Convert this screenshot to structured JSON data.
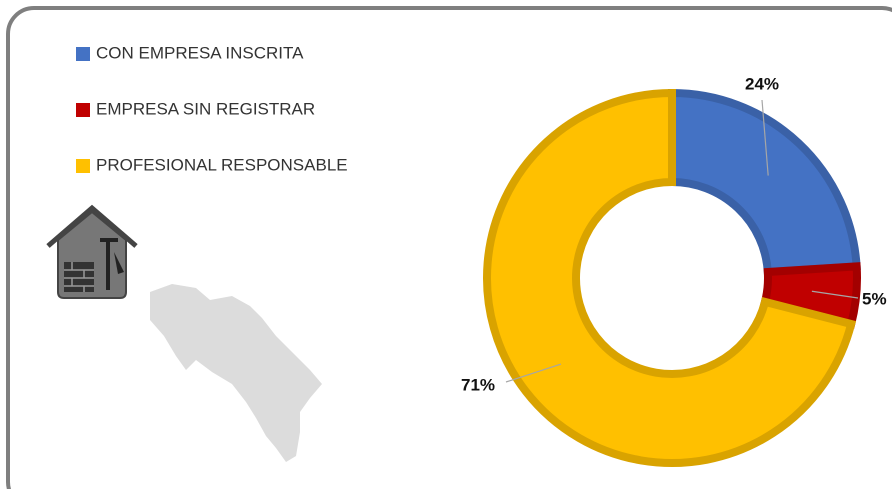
{
  "chart_data": {
    "type": "donut",
    "categories": [
      "CON EMPRESA INSCRITA",
      "EMPRESA SIN REGISTRAR",
      "PROFESIONAL RESPONSABLE"
    ],
    "values": [
      24,
      5,
      71
    ],
    "value_labels": [
      "24%",
      "5%",
      "71%"
    ],
    "colors": [
      "#4472c4",
      "#c00000",
      "#ffc000"
    ],
    "legend": "top-left"
  }
}
